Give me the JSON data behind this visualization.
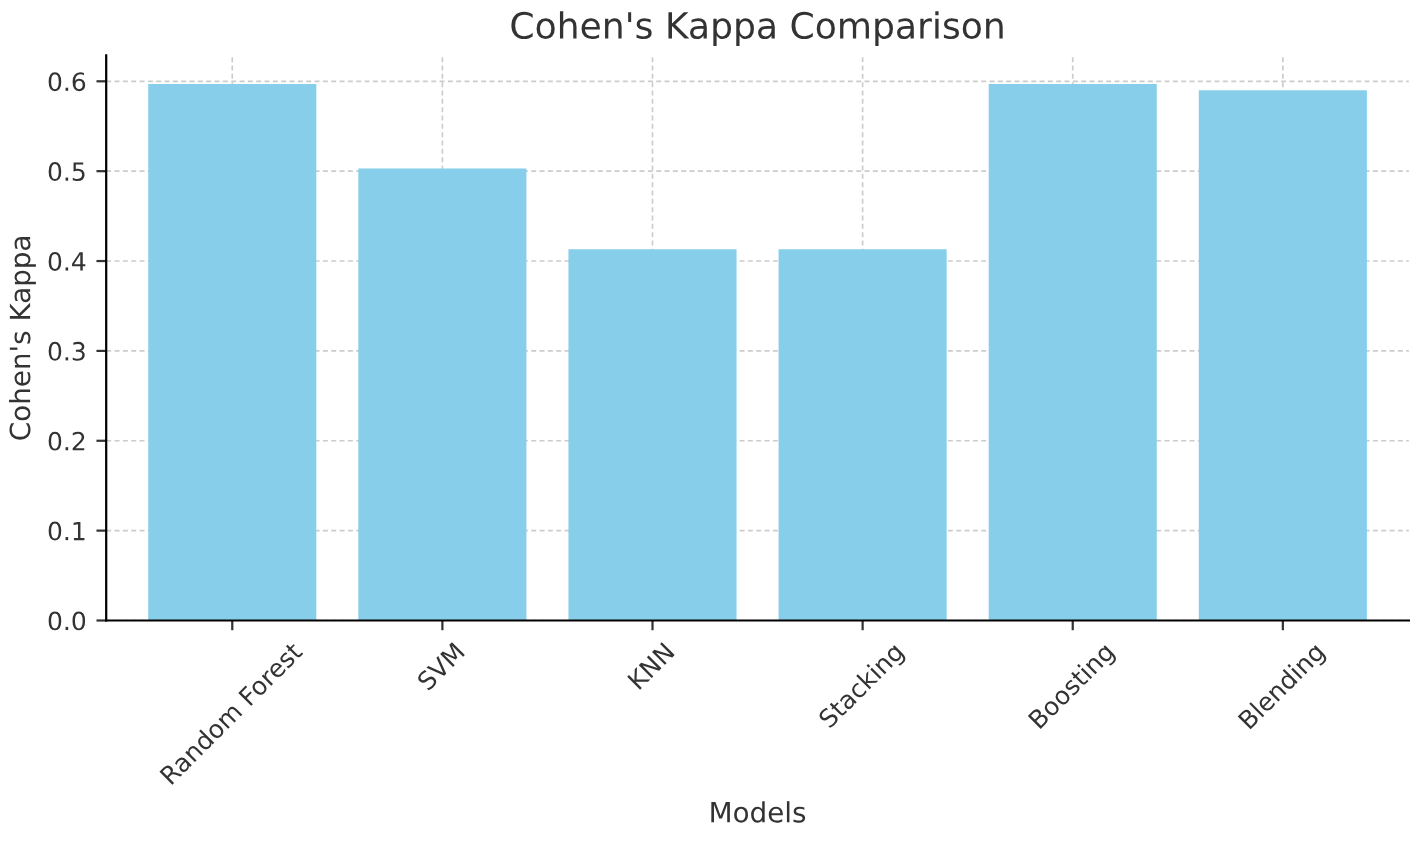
{
  "chart_data": {
    "type": "bar",
    "title": "Cohen's Kappa Comparison",
    "xlabel": "Models",
    "ylabel": "Cohen's Kappa",
    "categories": [
      "Random Forest",
      "SVM",
      "KNN",
      "Stacking",
      "Boosting",
      "Blending"
    ],
    "values": [
      0.597,
      0.503,
      0.413,
      0.413,
      0.597,
      0.59
    ],
    "color": "#87ceeb",
    "ylim": [
      0,
      0.629
    ],
    "yticks": [
      {
        "value": 0,
        "label": "0.0"
      },
      0.1,
      0.2,
      0.3,
      0.4,
      0.5,
      0.6
    ],
    "grid": true
  }
}
